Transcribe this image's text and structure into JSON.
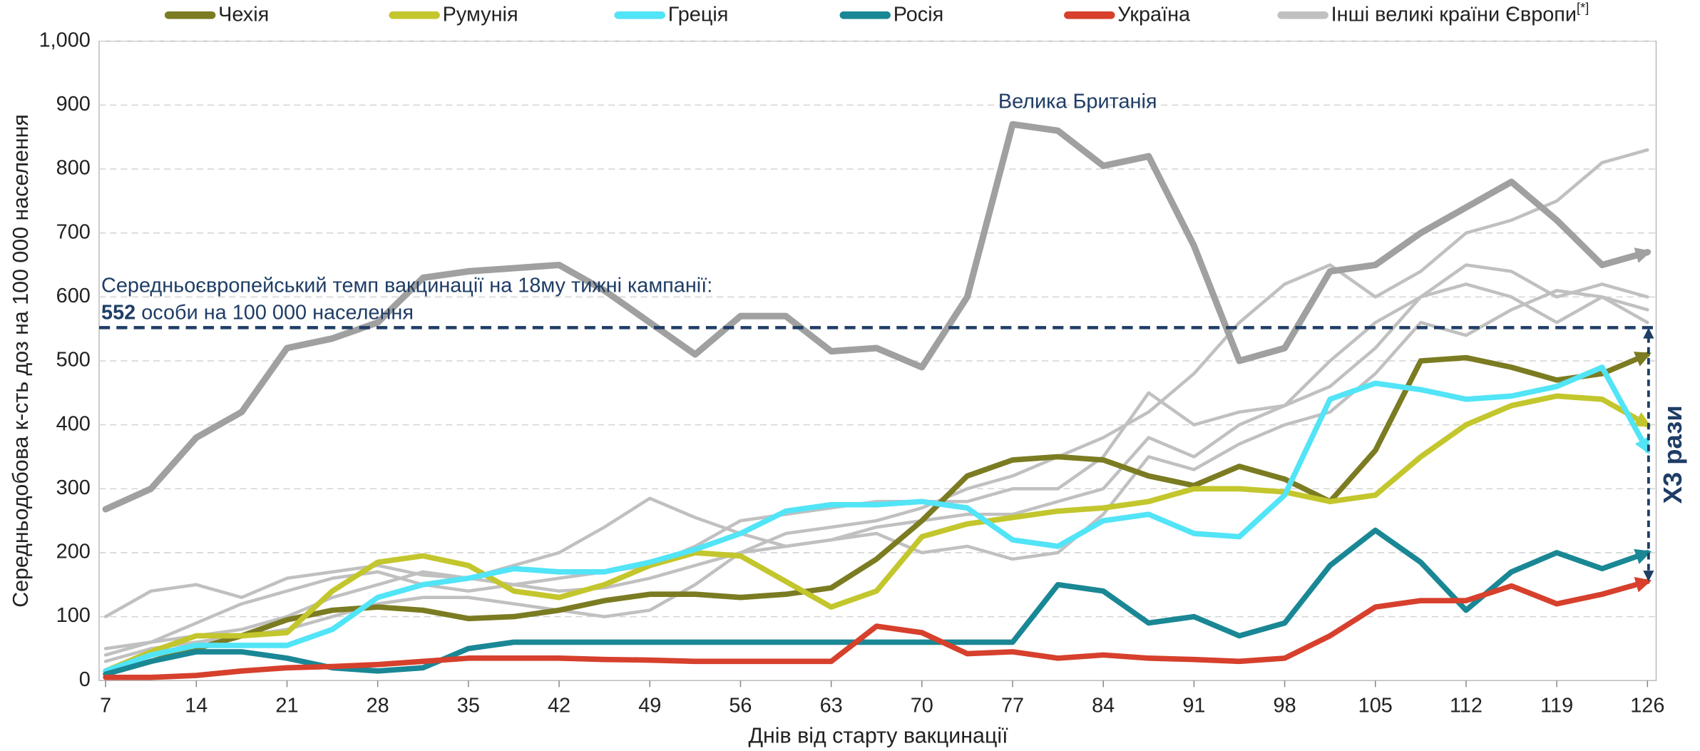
{
  "chart_data": {
    "type": "line",
    "x_label": "Днів від старту вакцинації",
    "y_label": "Середньодобова к-сть доз на 100 000 населення",
    "x": [
      7,
      10.5,
      14,
      17.5,
      21,
      24.5,
      28,
      31.5,
      35,
      38.5,
      42,
      45.5,
      49,
      52.5,
      56,
      59.5,
      63,
      66.5,
      70,
      73.5,
      77,
      80.5,
      84,
      87.5,
      91,
      94.5,
      98,
      101.5,
      105,
      108.5,
      112,
      115.5,
      119,
      122.5,
      126
    ],
    "xlim": [
      7,
      126
    ],
    "xticks": [
      7,
      14,
      21,
      28,
      35,
      42,
      49,
      56,
      63,
      70,
      77,
      84,
      91,
      98,
      105,
      112,
      119,
      126
    ],
    "ylim": [
      0,
      1000
    ],
    "yticks": [
      0,
      100,
      200,
      300,
      400,
      500,
      600,
      700,
      800,
      900,
      {
        "value": 1000,
        "label": "1,000"
      }
    ],
    "grid": true,
    "series": [
      {
        "name": "Чехія",
        "color": "#7b7b22",
        "values": [
          10,
          30,
          50,
          70,
          95,
          110,
          115,
          110,
          97,
          100,
          110,
          125,
          135,
          135,
          130,
          135,
          145,
          190,
          250,
          320,
          345,
          350,
          345,
          320,
          305,
          335,
          315,
          280,
          360,
          500,
          505,
          490,
          470,
          480,
          510
        ]
      },
      {
        "name": "Румунія",
        "color": "#c3c62c",
        "values": [
          15,
          45,
          70,
          70,
          75,
          140,
          185,
          195,
          180,
          140,
          130,
          150,
          180,
          200,
          195,
          155,
          115,
          140,
          225,
          245,
          255,
          265,
          270,
          280,
          300,
          300,
          295,
          280,
          290,
          350,
          400,
          430,
          445,
          440,
          400
        ]
      },
      {
        "name": "Греція",
        "color": "#52e4f7",
        "values": [
          15,
          40,
          55,
          55,
          55,
          80,
          130,
          150,
          160,
          175,
          170,
          170,
          185,
          205,
          230,
          265,
          275,
          275,
          280,
          270,
          220,
          210,
          250,
          260,
          230,
          225,
          290,
          440,
          465,
          455,
          440,
          445,
          460,
          490,
          360
        ]
      },
      {
        "name": "Росія",
        "color": "#1a8795",
        "values": [
          10,
          30,
          45,
          45,
          35,
          20,
          15,
          20,
          50,
          60,
          60,
          60,
          60,
          60,
          60,
          60,
          60,
          60,
          60,
          60,
          60,
          150,
          140,
          90,
          100,
          70,
          90,
          180,
          235,
          185,
          110,
          170,
          200,
          175,
          200
        ]
      },
      {
        "name": "Україна",
        "color": "#d6402c",
        "values": [
          5,
          5,
          8,
          15,
          20,
          22,
          25,
          30,
          35,
          35,
          35,
          33,
          32,
          30,
          30,
          30,
          30,
          85,
          75,
          42,
          45,
          35,
          40,
          35,
          33,
          30,
          35,
          70,
          115,
          125,
          125,
          148,
          120,
          135,
          155
        ]
      }
    ],
    "other_countries": {
      "name": "Інші великі країни Європи",
      "name_note": "[*]",
      "color": "#c0c0c0",
      "lines": [
        {
          "values": [
            100,
            140,
            150,
            130,
            160,
            170,
            180,
            165,
            160,
            180,
            200,
            240,
            285,
            255,
            230,
            210,
            220,
            240,
            250,
            260,
            260,
            280,
            300,
            380,
            350,
            400,
            430,
            500,
            560,
            600,
            620,
            600,
            560,
            600,
            580
          ]
        },
        {
          "values": [
            40,
            60,
            90,
            120,
            140,
            160,
            170,
            150,
            140,
            150,
            160,
            170,
            180,
            210,
            250,
            260,
            270,
            280,
            280,
            280,
            300,
            300,
            350,
            450,
            400,
            420,
            430,
            460,
            520,
            600,
            650,
            640,
            600,
            620,
            600
          ]
        },
        {
          "values": [
            30,
            50,
            60,
            70,
            80,
            100,
            120,
            130,
            130,
            120,
            110,
            100,
            110,
            150,
            200,
            230,
            240,
            250,
            270,
            300,
            320,
            350,
            380,
            420,
            480,
            560,
            620,
            650,
            600,
            640,
            700,
            720,
            750,
            810,
            830
          ]
        },
        {
          "values": [
            50,
            60,
            70,
            80,
            100,
            130,
            150,
            170,
            160,
            150,
            140,
            145,
            160,
            180,
            200,
            210,
            220,
            230,
            200,
            210,
            190,
            200,
            260,
            350,
            330,
            370,
            400,
            420,
            480,
            560,
            540,
            580,
            610,
            600,
            560
          ]
        }
      ]
    },
    "highlight": {
      "label": "Велика Британія",
      "color": "#a0a0a0",
      "values": [
        268,
        300,
        380,
        420,
        520,
        535,
        560,
        630,
        640,
        645,
        650,
        610,
        560,
        510,
        570,
        570,
        515,
        520,
        490,
        600,
        870,
        860,
        805,
        820,
        680,
        500,
        520,
        640,
        650,
        700,
        740,
        780,
        720,
        650,
        670
      ]
    },
    "reference": {
      "value": 552,
      "text": "Середньоєвропейський темп вакцинації на 18му тижні кампанії:",
      "value_text": "552",
      "value_suffix": " особи на 100 000 населення"
    },
    "multiplier_label": "X3 рази"
  }
}
